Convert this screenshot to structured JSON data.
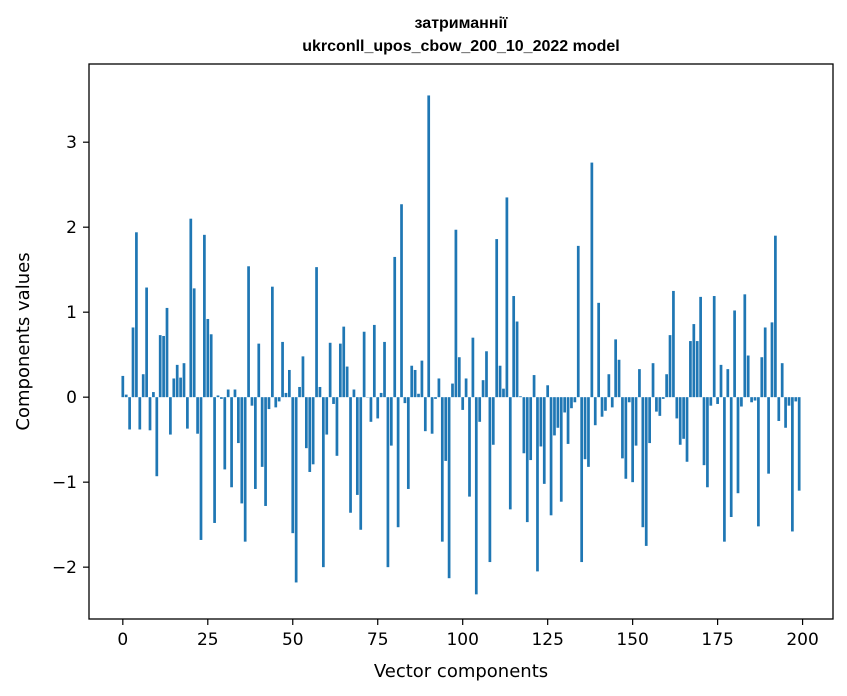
{
  "chart_data": {
    "type": "bar",
    "title": "затриманнії",
    "subtitle": "ukrconll_upos_cbow_200_10_2022 model",
    "xlabel": "Vector components",
    "ylabel": "Components values",
    "xlim": [
      -9.95,
      208.95
    ],
    "ylim": [
      -2.61,
      3.92
    ],
    "xticks": [
      0,
      25,
      50,
      75,
      100,
      125,
      150,
      175,
      200
    ],
    "yticks": [
      -2,
      -1,
      0,
      1,
      2,
      3
    ],
    "ytick_labels": [
      "−2",
      "−1",
      "0",
      "1",
      "2",
      "3"
    ],
    "bar_color": "#1f77b4",
    "grid": false,
    "legend": "none",
    "values": [
      0.25,
      0.03,
      -0.38,
      0.82,
      1.94,
      -0.38,
      0.27,
      1.29,
      -0.39,
      0.06,
      -0.93,
      0.73,
      0.72,
      1.05,
      -0.44,
      0.22,
      0.38,
      0.23,
      0.4,
      -0.37,
      2.1,
      1.28,
      -0.43,
      -1.68,
      1.91,
      0.92,
      0.74,
      -1.48,
      0.02,
      -0.02,
      -0.85,
      0.09,
      -1.06,
      0.09,
      -0.54,
      -1.25,
      -1.7,
      1.54,
      -0.1,
      -1.08,
      0.63,
      -0.82,
      -1.28,
      -0.14,
      1.3,
      -0.12,
      -0.05,
      0.65,
      0.05,
      0.32,
      -1.6,
      -2.18,
      0.12,
      0.48,
      -0.6,
      -0.88,
      -0.79,
      1.53,
      0.12,
      -2.0,
      -0.44,
      0.64,
      -0.08,
      -0.69,
      0.63,
      0.83,
      0.36,
      -1.36,
      0.09,
      -1.15,
      -1.56,
      0.77,
      0.0,
      -0.29,
      0.85,
      -0.25,
      0.05,
      0.65,
      -2.0,
      -0.57,
      1.65,
      -1.53,
      2.27,
      -0.07,
      -1.08,
      0.37,
      0.32,
      0.04,
      0.43,
      -0.4,
      3.55,
      -0.43,
      -0.02,
      0.22,
      -1.7,
      -0.75,
      -2.13,
      0.16,
      1.97,
      0.47,
      -0.15,
      0.22,
      -1.17,
      0.7,
      -2.32,
      -0.29,
      0.2,
      0.54,
      -1.94,
      -0.56,
      1.86,
      0.37,
      0.1,
      2.35,
      -1.32,
      1.19,
      0.89,
      0.01,
      -0.66,
      -1.47,
      -0.74,
      0.26,
      -2.05,
      -0.58,
      -1.02,
      0.14,
      -1.39,
      -0.45,
      -0.36,
      -1.23,
      -0.18,
      -0.55,
      -0.13,
      -0.06,
      1.78,
      -1.94,
      -0.73,
      -0.82,
      2.76,
      -0.33,
      1.11,
      -0.23,
      -0.16,
      0.27,
      -0.12,
      0.68,
      0.44,
      -0.72,
      -0.96,
      -0.06,
      -1.0,
      -0.57,
      0.33,
      -1.53,
      -1.75,
      -0.54,
      0.4,
      -0.17,
      -0.22,
      -0.02,
      0.27,
      0.73,
      1.25,
      -0.25,
      -0.56,
      -0.49,
      -0.76,
      0.66,
      0.86,
      0.66,
      1.18,
      -0.8,
      -1.06,
      -0.1,
      1.19,
      -0.08,
      0.38,
      -1.7,
      0.33,
      -1.41,
      1.02,
      -1.13,
      -0.11,
      1.21,
      0.49,
      -0.06,
      -0.04,
      -1.52,
      0.47,
      0.82,
      -0.9,
      0.88,
      1.9,
      -0.28,
      0.4,
      -0.36,
      -0.1,
      -1.58,
      -0.05,
      -1.1
    ]
  }
}
